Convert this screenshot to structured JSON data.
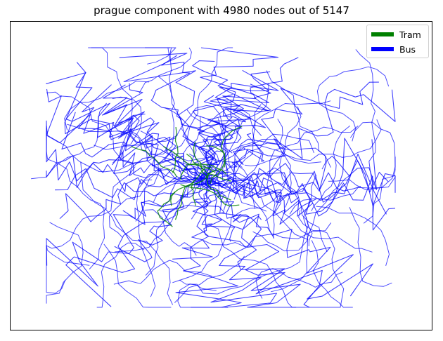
{
  "title": "prague component with 4980 nodes out of 5147",
  "legend": {
    "items": [
      {
        "label": "Tram",
        "color": "#008000"
      },
      {
        "label": "Bus",
        "color": "#0000ff"
      }
    ]
  }
}
